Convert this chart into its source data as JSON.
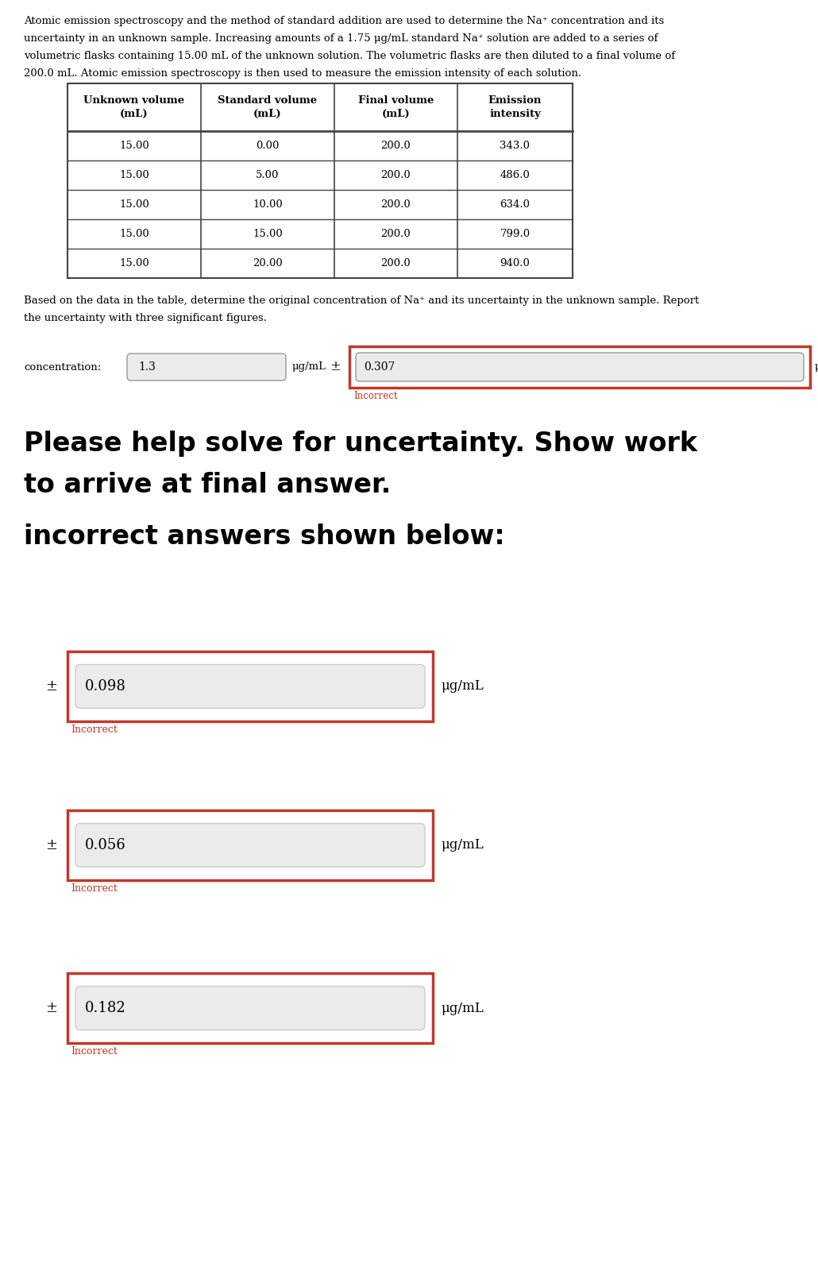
{
  "bg_color": "#ffffff",
  "intro_lines": [
    "Atomic emission spectroscopy and the method of standard addition are used to determine the Na⁺ concentration and its",
    "uncertainty in an unknown sample. Increasing amounts of a 1.75 μg/mL standard Na⁺ solution are added to a series of",
    "volumetric flasks containing 15.00 mL of the unknown solution. The volumetric flasks are then diluted to a final volume of",
    "200.0 mL. Atomic emission spectroscopy is then used to measure the emission intensity of each solution."
  ],
  "table_headers": [
    "Unknown volume\n(mL)",
    "Standard volume\n(mL)",
    "Final volume\n(mL)",
    "Emission\nintensity"
  ],
  "table_data": [
    [
      "15.00",
      "0.00",
      "200.0",
      "343.0"
    ],
    [
      "15.00",
      "5.00",
      "200.0",
      "486.0"
    ],
    [
      "15.00",
      "10.00",
      "200.0",
      "634.0"
    ],
    [
      "15.00",
      "15.00",
      "200.0",
      "799.0"
    ],
    [
      "15.00",
      "20.00",
      "200.0",
      "940.0"
    ]
  ],
  "question_lines": [
    "Based on the data in the table, determine the original concentration of Na⁺ and its uncertainty in the unknown sample. Report",
    "the uncertainty with three significant figures."
  ],
  "conc_label": "concentration:",
  "conc_value": "1.3",
  "conc_unit": "μg/mL",
  "pm_symbol": "±",
  "uncertainty_value": "0.307",
  "uncertainty_unit": "μg/mL",
  "incorrect_label": "Incorrect",
  "incorrect_color": "#c0392b",
  "bold_title1": "Please help solve for uncertainty. Show work",
  "bold_title2": "to arrive at final answer.",
  "incorrect_subtitle": "incorrect answers shown below:",
  "wrong_answers": [
    "0.098",
    "0.056",
    "0.182"
  ],
  "input_bg": "#ebebeb",
  "border_red": "#c0392b",
  "table_border": "#444444"
}
